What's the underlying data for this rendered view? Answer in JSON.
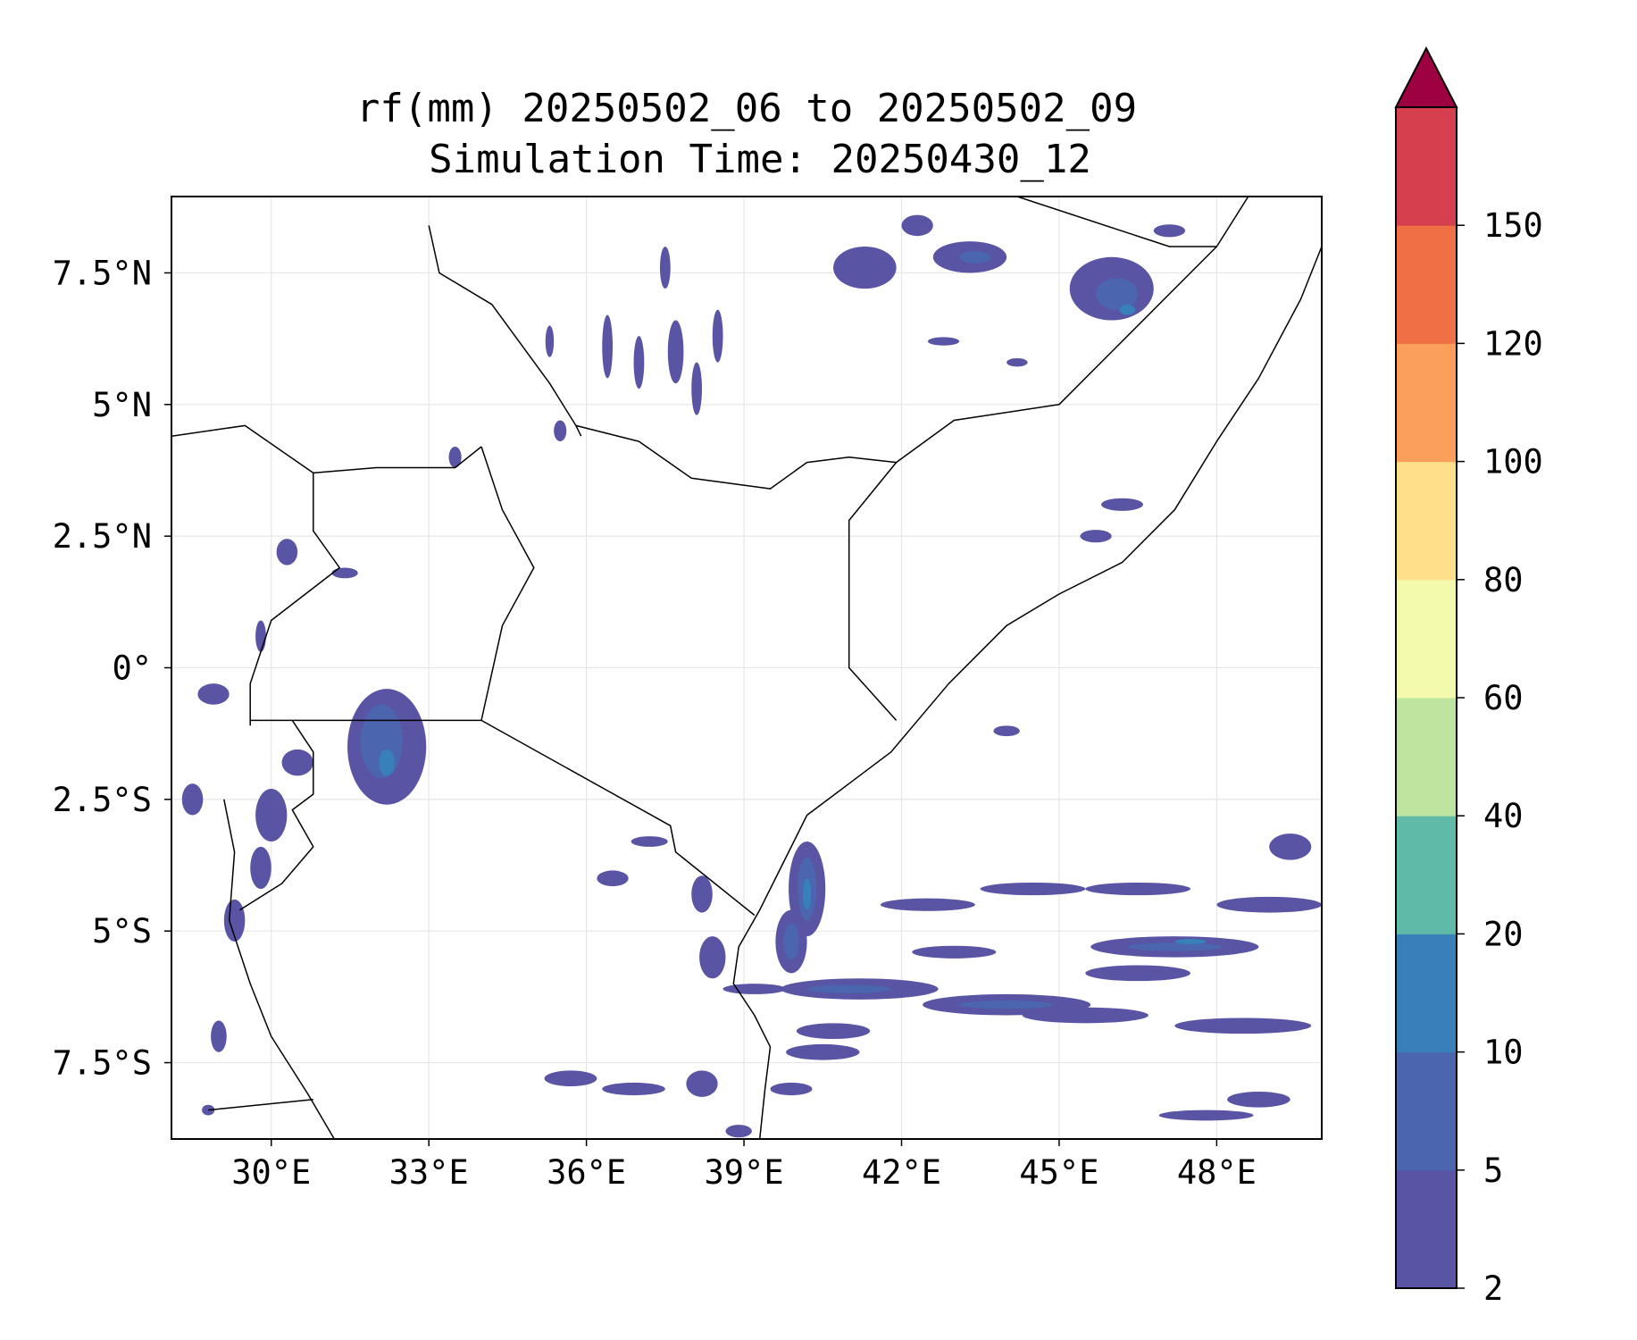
{
  "title": {
    "line1": "rf(mm) 20250502_06 to 20250502_09",
    "line2": "Simulation Time: 20250430_12"
  },
  "map": {
    "lon_range": [
      28.1,
      50.0
    ],
    "lat_range": [
      -8.95,
      8.95
    ],
    "lon_ticks": [
      {
        "value": 30,
        "label": "30°E"
      },
      {
        "value": 33,
        "label": "33°E"
      },
      {
        "value": 36,
        "label": "36°E"
      },
      {
        "value": 39,
        "label": "39°E"
      },
      {
        "value": 42,
        "label": "42°E"
      },
      {
        "value": 45,
        "label": "45°E"
      },
      {
        "value": 48,
        "label": "48°E"
      }
    ],
    "lat_ticks": [
      {
        "value": 7.5,
        "label": "7.5°N"
      },
      {
        "value": 5,
        "label": "5°N"
      },
      {
        "value": 2.5,
        "label": "2.5°N"
      },
      {
        "value": 0,
        "label": "0°"
      },
      {
        "value": -2.5,
        "label": "2.5°S"
      },
      {
        "value": -5,
        "label": "5°S"
      },
      {
        "value": -7.5,
        "label": "7.5°S"
      }
    ],
    "gridlines": true,
    "boundaries": [
      {
        "name": "coast-east-africa",
        "points": [
          [
            50.0,
            8.0
          ],
          [
            49.6,
            7.0
          ],
          [
            48.8,
            5.5
          ],
          [
            48.0,
            4.3
          ],
          [
            47.2,
            3.0
          ],
          [
            46.2,
            2.0
          ],
          [
            45.0,
            1.4
          ],
          [
            44.0,
            0.8
          ],
          [
            42.9,
            -0.3
          ],
          [
            41.8,
            -1.6
          ],
          [
            41.0,
            -2.2
          ],
          [
            40.2,
            -2.8
          ],
          [
            39.7,
            -3.8
          ],
          [
            39.3,
            -4.6
          ],
          [
            38.9,
            -5.3
          ],
          [
            38.8,
            -6.0
          ],
          [
            39.2,
            -6.6
          ],
          [
            39.5,
            -7.2
          ],
          [
            39.4,
            -8.0
          ],
          [
            39.3,
            -8.95
          ]
        ]
      },
      {
        "name": "ethiopia-somalia",
        "points": [
          [
            41.9,
            -1.0
          ],
          [
            41.0,
            0.0
          ],
          [
            41.0,
            2.8
          ],
          [
            41.9,
            3.9
          ],
          [
            43.0,
            4.7
          ],
          [
            45.0,
            5.0
          ],
          [
            46.0,
            6.0
          ],
          [
            47.0,
            7.0
          ],
          [
            48.0,
            8.0
          ],
          [
            48.6,
            8.95
          ]
        ]
      },
      {
        "name": "somaliland",
        "points": [
          [
            44.2,
            8.95
          ],
          [
            47.1,
            8.0
          ],
          [
            48.0,
            8.0
          ]
        ]
      },
      {
        "name": "south-sudan-ethiopia",
        "points": [
          [
            33.0,
            8.4
          ],
          [
            33.2,
            7.5
          ],
          [
            34.2,
            6.9
          ],
          [
            35.3,
            5.4
          ],
          [
            35.8,
            4.6
          ],
          [
            35.9,
            4.4
          ]
        ]
      },
      {
        "name": "ethiopia-kenya",
        "points": [
          [
            35.8,
            4.6
          ],
          [
            37.0,
            4.3
          ],
          [
            38.0,
            3.6
          ],
          [
            39.5,
            3.4
          ],
          [
            40.2,
            3.9
          ],
          [
            41.0,
            4.0
          ],
          [
            41.9,
            3.9
          ]
        ]
      },
      {
        "name": "south-sudan-uganda",
        "points": [
          [
            28.1,
            4.4
          ],
          [
            29.5,
            4.6
          ],
          [
            30.8,
            3.7
          ],
          [
            32.0,
            3.8
          ],
          [
            33.5,
            3.8
          ],
          [
            34.0,
            4.2
          ]
        ]
      },
      {
        "name": "uganda-kenya",
        "points": [
          [
            34.0,
            4.2
          ],
          [
            34.4,
            3.0
          ],
          [
            35.0,
            1.9
          ],
          [
            34.4,
            0.8
          ],
          [
            34.0,
            -1.0
          ]
        ]
      },
      {
        "name": "uganda-drc",
        "points": [
          [
            30.8,
            3.7
          ],
          [
            30.8,
            2.6
          ],
          [
            31.3,
            1.9
          ],
          [
            30.0,
            0.9
          ],
          [
            29.6,
            -0.3
          ],
          [
            29.6,
            -1.1
          ]
        ]
      },
      {
        "name": "uganda-tanzania",
        "points": [
          [
            29.6,
            -1.0
          ],
          [
            30.4,
            -1.0
          ],
          [
            34.0,
            -1.0
          ]
        ]
      },
      {
        "name": "tanzania-kenya",
        "points": [
          [
            34.0,
            -1.0
          ],
          [
            37.6,
            -3.0
          ],
          [
            37.7,
            -3.5
          ],
          [
            39.2,
            -4.7
          ]
        ]
      },
      {
        "name": "rwanda-burundi",
        "points": [
          [
            30.4,
            -1.0
          ],
          [
            30.8,
            -1.6
          ],
          [
            30.8,
            -2.4
          ],
          [
            30.4,
            -2.7
          ],
          [
            30.8,
            -3.4
          ],
          [
            30.2,
            -4.1
          ],
          [
            29.4,
            -4.6
          ]
        ]
      },
      {
        "name": "lake-tanganyika",
        "points": [
          [
            29.1,
            -2.5
          ],
          [
            29.3,
            -3.5
          ],
          [
            29.2,
            -4.8
          ],
          [
            29.6,
            -6.0
          ],
          [
            30.0,
            -7.0
          ],
          [
            30.7,
            -8.1
          ],
          [
            31.2,
            -8.95
          ]
        ]
      },
      {
        "name": "tanzania-zambia",
        "points": [
          [
            28.8,
            -8.4
          ],
          [
            30.8,
            -8.2
          ]
        ]
      }
    ]
  },
  "colorbar": {
    "boundaries": [
      2,
      5,
      10,
      20,
      40,
      60,
      80,
      100,
      120,
      150
    ],
    "tick_labels": [
      "2",
      "5",
      "10",
      "20",
      "40",
      "60",
      "80",
      "100",
      "120",
      "150"
    ],
    "colors": [
      "#5954a4",
      "#4b65af",
      "#3880b9",
      "#5fbaa8",
      "#bee5a0",
      "#f3faad",
      "#fee08b",
      "#fba05b",
      "#f07046",
      "#d6404e"
    ],
    "extend_max_color": "#9e0142"
  },
  "rain_cells": {
    "level_colors": [
      "#5954a4",
      "#4b65af",
      "#3880b9",
      "#5fbaa8"
    ],
    "cells": [
      {
        "lon": 32.2,
        "lat": -1.5,
        "rx": 0.75,
        "ry": 1.1,
        "level": 0
      },
      {
        "lon": 32.1,
        "lat": -1.4,
        "rx": 0.4,
        "ry": 0.7,
        "level": 1
      },
      {
        "lon": 32.2,
        "lat": -1.8,
        "rx": 0.15,
        "ry": 0.25,
        "level": 2
      },
      {
        "lon": 46.0,
        "lat": 7.2,
        "rx": 0.8,
        "ry": 0.6,
        "level": 0
      },
      {
        "lon": 46.1,
        "lat": 7.1,
        "rx": 0.4,
        "ry": 0.3,
        "level": 1
      },
      {
        "lon": 46.3,
        "lat": 6.8,
        "rx": 0.15,
        "ry": 0.1,
        "level": 2
      },
      {
        "lon": 41.3,
        "lat": 7.6,
        "rx": 0.6,
        "ry": 0.4,
        "level": 0
      },
      {
        "lon": 43.3,
        "lat": 7.8,
        "rx": 0.7,
        "ry": 0.3,
        "level": 0
      },
      {
        "lon": 43.4,
        "lat": 7.8,
        "rx": 0.3,
        "ry": 0.12,
        "level": 1
      },
      {
        "lon": 42.3,
        "lat": 8.4,
        "rx": 0.3,
        "ry": 0.2,
        "level": 0
      },
      {
        "lon": 40.2,
        "lat": -4.2,
        "rx": 0.35,
        "ry": 0.9,
        "level": 0
      },
      {
        "lon": 40.2,
        "lat": -4.2,
        "rx": 0.18,
        "ry": 0.6,
        "level": 1
      },
      {
        "lon": 40.2,
        "lat": -4.3,
        "rx": 0.08,
        "ry": 0.3,
        "level": 2
      },
      {
        "lon": 39.9,
        "lat": -5.2,
        "rx": 0.3,
        "ry": 0.6,
        "level": 0
      },
      {
        "lon": 39.9,
        "lat": -5.2,
        "rx": 0.15,
        "ry": 0.35,
        "level": 1
      },
      {
        "lon": 41.2,
        "lat": -6.1,
        "rx": 1.5,
        "ry": 0.2,
        "level": 0
      },
      {
        "lon": 41.0,
        "lat": -6.1,
        "rx": 0.8,
        "ry": 0.08,
        "level": 1
      },
      {
        "lon": 44.0,
        "lat": -6.4,
        "rx": 1.6,
        "ry": 0.2,
        "level": 0
      },
      {
        "lon": 44.0,
        "lat": -6.4,
        "rx": 0.9,
        "ry": 0.08,
        "level": 1
      },
      {
        "lon": 47.2,
        "lat": -5.3,
        "rx": 1.6,
        "ry": 0.2,
        "level": 0
      },
      {
        "lon": 47.2,
        "lat": -5.3,
        "rx": 0.9,
        "ry": 0.08,
        "level": 1
      },
      {
        "lon": 47.5,
        "lat": -5.2,
        "rx": 0.3,
        "ry": 0.05,
        "level": 2
      },
      {
        "lon": 46.5,
        "lat": -5.8,
        "rx": 1.0,
        "ry": 0.15,
        "level": 0
      },
      {
        "lon": 45.5,
        "lat": -6.6,
        "rx": 1.2,
        "ry": 0.15,
        "level": 0
      },
      {
        "lon": 48.5,
        "lat": -6.8,
        "rx": 1.3,
        "ry": 0.15,
        "level": 0
      },
      {
        "lon": 49.0,
        "lat": -4.5,
        "rx": 1.0,
        "ry": 0.15,
        "level": 0
      },
      {
        "lon": 49.4,
        "lat": -3.4,
        "rx": 0.4,
        "ry": 0.25,
        "level": 0
      },
      {
        "lon": 42.5,
        "lat": -4.5,
        "rx": 0.9,
        "ry": 0.12,
        "level": 0
      },
      {
        "lon": 44.5,
        "lat": -4.2,
        "rx": 1.0,
        "ry": 0.12,
        "level": 0
      },
      {
        "lon": 46.5,
        "lat": -4.2,
        "rx": 1.0,
        "ry": 0.12,
        "level": 0
      },
      {
        "lon": 43.0,
        "lat": -5.4,
        "rx": 0.8,
        "ry": 0.12,
        "level": 0
      },
      {
        "lon": 40.7,
        "lat": -6.9,
        "rx": 0.7,
        "ry": 0.15,
        "level": 0
      },
      {
        "lon": 40.5,
        "lat": -7.3,
        "rx": 0.7,
        "ry": 0.15,
        "level": 0
      },
      {
        "lon": 39.2,
        "lat": -6.1,
        "rx": 0.6,
        "ry": 0.1,
        "level": 0
      },
      {
        "lon": 38.4,
        "lat": -5.5,
        "rx": 0.25,
        "ry": 0.4,
        "level": 0
      },
      {
        "lon": 39.9,
        "lat": -8.0,
        "rx": 0.4,
        "ry": 0.12,
        "level": 0
      },
      {
        "lon": 48.8,
        "lat": -8.2,
        "rx": 0.6,
        "ry": 0.15,
        "level": 0
      },
      {
        "lon": 47.8,
        "lat": -8.5,
        "rx": 0.9,
        "ry": 0.1,
        "level": 0
      },
      {
        "lon": 36.9,
        "lat": -8.0,
        "rx": 0.6,
        "ry": 0.12,
        "level": 0
      },
      {
        "lon": 35.7,
        "lat": -7.8,
        "rx": 0.5,
        "ry": 0.15,
        "level": 0
      },
      {
        "lon": 38.2,
        "lat": -7.9,
        "rx": 0.3,
        "ry": 0.25,
        "level": 0
      },
      {
        "lon": 38.9,
        "lat": -8.8,
        "rx": 0.25,
        "ry": 0.12,
        "level": 0
      },
      {
        "lon": 30.0,
        "lat": -2.8,
        "rx": 0.3,
        "ry": 0.5,
        "level": 0
      },
      {
        "lon": 29.8,
        "lat": -3.8,
        "rx": 0.2,
        "ry": 0.4,
        "level": 0
      },
      {
        "lon": 29.3,
        "lat": -4.8,
        "rx": 0.2,
        "ry": 0.4,
        "level": 0
      },
      {
        "lon": 28.9,
        "lat": -0.5,
        "rx": 0.3,
        "ry": 0.2,
        "level": 0
      },
      {
        "lon": 28.5,
        "lat": -2.5,
        "rx": 0.2,
        "ry": 0.3,
        "level": 0
      },
      {
        "lon": 30.5,
        "lat": -1.8,
        "rx": 0.3,
        "ry": 0.25,
        "level": 0
      },
      {
        "lon": 30.3,
        "lat": 2.2,
        "rx": 0.2,
        "ry": 0.25,
        "level": 0
      },
      {
        "lon": 31.4,
        "lat": 1.8,
        "rx": 0.25,
        "ry": 0.1,
        "level": 0
      },
      {
        "lon": 29.8,
        "lat": 0.6,
        "rx": 0.1,
        "ry": 0.3,
        "level": 0
      },
      {
        "lon": 44.0,
        "lat": -1.2,
        "rx": 0.25,
        "ry": 0.1,
        "level": 0
      },
      {
        "lon": 45.7,
        "lat": 2.5,
        "rx": 0.3,
        "ry": 0.12,
        "level": 0
      },
      {
        "lon": 46.2,
        "lat": 3.1,
        "rx": 0.4,
        "ry": 0.12,
        "level": 0
      },
      {
        "lon": 37.7,
        "lat": 6.0,
        "rx": 0.15,
        "ry": 0.6,
        "level": 0
      },
      {
        "lon": 36.4,
        "lat": 6.1,
        "rx": 0.1,
        "ry": 0.6,
        "level": 0
      },
      {
        "lon": 37.0,
        "lat": 5.8,
        "rx": 0.1,
        "ry": 0.5,
        "level": 0
      },
      {
        "lon": 38.1,
        "lat": 5.3,
        "rx": 0.1,
        "ry": 0.5,
        "level": 0
      },
      {
        "lon": 38.5,
        "lat": 6.3,
        "rx": 0.1,
        "ry": 0.5,
        "level": 0
      },
      {
        "lon": 37.5,
        "lat": 7.6,
        "rx": 0.1,
        "ry": 0.4,
        "level": 0
      },
      {
        "lon": 35.3,
        "lat": 6.2,
        "rx": 0.08,
        "ry": 0.3,
        "level": 0
      },
      {
        "lon": 42.8,
        "lat": 6.2,
        "rx": 0.3,
        "ry": 0.08,
        "level": 0
      },
      {
        "lon": 44.2,
        "lat": 5.8,
        "rx": 0.2,
        "ry": 0.08,
        "level": 0
      },
      {
        "lon": 47.1,
        "lat": 8.3,
        "rx": 0.3,
        "ry": 0.12,
        "level": 0
      },
      {
        "lon": 35.5,
        "lat": 4.5,
        "rx": 0.12,
        "ry": 0.2,
        "level": 0
      },
      {
        "lon": 33.5,
        "lat": 4.0,
        "rx": 0.12,
        "ry": 0.2,
        "level": 0
      },
      {
        "lon": 37.2,
        "lat": -3.3,
        "rx": 0.35,
        "ry": 0.1,
        "level": 0
      },
      {
        "lon": 36.5,
        "lat": -4.0,
        "rx": 0.3,
        "ry": 0.15,
        "level": 0
      },
      {
        "lon": 38.2,
        "lat": -4.3,
        "rx": 0.2,
        "ry": 0.35,
        "level": 0
      },
      {
        "lon": 29.0,
        "lat": -7.0,
        "rx": 0.15,
        "ry": 0.3,
        "level": 0
      },
      {
        "lon": 28.8,
        "lat": -8.4,
        "rx": 0.12,
        "ry": 0.1,
        "level": 0
      }
    ]
  }
}
